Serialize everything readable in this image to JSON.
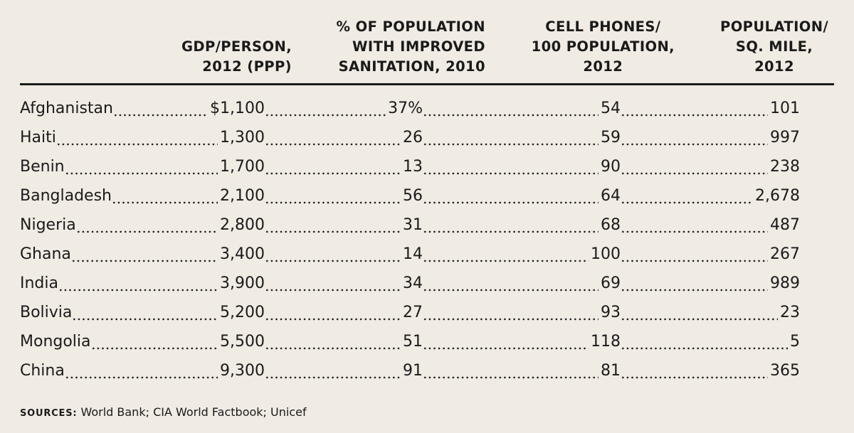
{
  "chart_data": {
    "type": "table",
    "columns": [
      {
        "lines": [
          "GDP/PERSON,",
          "2012 (PPP)"
        ]
      },
      {
        "lines": [
          "% OF POPULATION",
          "WITH IMPROVED",
          "SANITATION, 2010"
        ]
      },
      {
        "lines": [
          "CELL PHONES/",
          "100 POPULATION,",
          "2012"
        ]
      },
      {
        "lines": [
          "POPULATION/",
          "SQ. MILE,",
          "2012"
        ]
      }
    ],
    "rows": [
      {
        "country": "Afghanistan",
        "values": [
          "$1,100",
          "37%",
          "54",
          "101"
        ]
      },
      {
        "country": "Haiti",
        "values": [
          "1,300",
          "26",
          "59",
          "997"
        ]
      },
      {
        "country": "Benin",
        "values": [
          "1,700",
          "13",
          "90",
          "238"
        ]
      },
      {
        "country": "Bangladesh",
        "values": [
          "2,100",
          "56",
          "64",
          "2,678"
        ]
      },
      {
        "country": "Nigeria",
        "values": [
          "2,800",
          "31",
          "68",
          "487"
        ]
      },
      {
        "country": "Ghana",
        "values": [
          "3,400",
          "14",
          "100",
          "267"
        ]
      },
      {
        "country": "India",
        "values": [
          "3,900",
          "34",
          "69",
          "989"
        ]
      },
      {
        "country": "Bolivia",
        "values": [
          "5,200",
          "27",
          "93",
          "23"
        ]
      },
      {
        "country": "Mongolia",
        "values": [
          "5,500",
          "51",
          "118",
          "5"
        ]
      },
      {
        "country": "China",
        "values": [
          "9,300",
          "91",
          "81",
          "365"
        ]
      }
    ],
    "sources_label": "SOURCES:",
    "sources_text": " World Bank; CIA World Factbook; Unicef"
  }
}
